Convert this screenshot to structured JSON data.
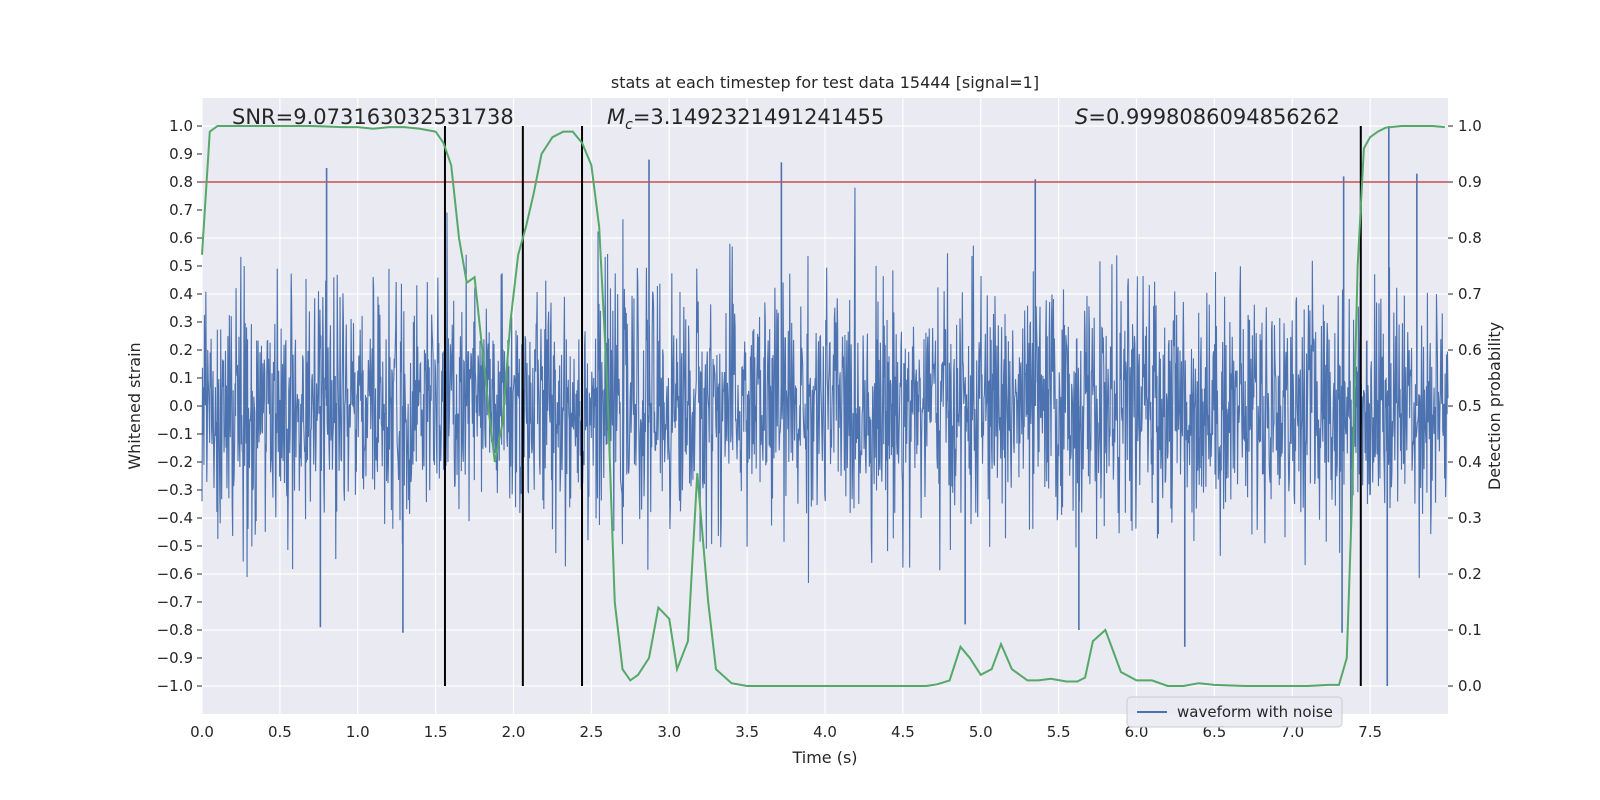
{
  "chart_data": {
    "type": "line",
    "title": "stats at each timestep for test data 15444 [signal=1]",
    "xlabel": "Time (s)",
    "ylabel": "Whitened strain",
    "y2label": "Detection probability",
    "xlim": [
      0.0,
      8.0
    ],
    "ylim": [
      -1.1,
      1.1
    ],
    "y2lim": [
      -0.05,
      1.05
    ],
    "xticks": [
      0.0,
      0.5,
      1.0,
      1.5,
      2.0,
      2.5,
      3.0,
      3.5,
      4.0,
      4.5,
      5.0,
      5.5,
      6.0,
      6.5,
      7.0,
      7.5
    ],
    "xtick_labels": [
      "0.0",
      "0.5",
      "1.0",
      "1.5",
      "2.0",
      "2.5",
      "3.0",
      "3.5",
      "4.0",
      "4.5",
      "5.0",
      "5.5",
      "6.0",
      "6.5",
      "7.0",
      "7.5"
    ],
    "yticks": [
      1.0,
      0.9,
      0.8,
      0.7,
      0.6,
      0.5,
      0.4,
      0.3,
      0.2,
      0.1,
      0.0,
      -0.1,
      -0.2,
      -0.3,
      -0.4,
      -0.5,
      -0.6,
      -0.7,
      -0.8,
      -0.9,
      -1.0
    ],
    "ytick_labels": [
      "1.0",
      "0.9",
      "0.8",
      "0.7",
      "0.6",
      "0.5",
      "0.4",
      "0.3",
      "0.2",
      "0.1",
      "0.0",
      "−0.1",
      "−0.2",
      "−0.3",
      "−0.4",
      "−0.5",
      "−0.6",
      "−0.7",
      "−0.8",
      "−0.9",
      "−1.0"
    ],
    "y2ticks": [
      1.0,
      0.9,
      0.8,
      0.7,
      0.6,
      0.5,
      0.4,
      0.3,
      0.2,
      0.1,
      0.0
    ],
    "y2tick_labels": [
      "1.0",
      "0.9",
      "0.8",
      "0.7",
      "0.6",
      "0.5",
      "0.4",
      "0.3",
      "0.2",
      "0.1",
      "0.0"
    ],
    "annotations": {
      "snr": "SNR=9.073163032531738",
      "mc_symbol": "M",
      "mc_sub": "c",
      "mc_value": "=3.1492321491241455",
      "s_symbol": "S",
      "s_value": "=0.9998086094856262"
    },
    "threshold": {
      "axis": "y2",
      "value": 0.9
    },
    "vertical_lines_x": [
      1.56,
      2.06,
      2.44,
      7.44
    ],
    "waveform": {
      "name": "waveform with noise",
      "x_range": [
        0.0,
        8.0
      ],
      "envelope_p95": 0.41,
      "peaks": [
        {
          "x": 0.8,
          "y": 0.85
        },
        {
          "x": 2.87,
          "y": 0.88
        },
        {
          "x": 3.72,
          "y": 0.87
        },
        {
          "x": 5.35,
          "y": 0.81
        },
        {
          "x": 7.62,
          "y": 1.0
        },
        {
          "x": 7.33,
          "y": 0.82
        },
        {
          "x": 7.8,
          "y": 0.83
        },
        {
          "x": 0.76,
          "y": -0.79
        },
        {
          "x": 1.29,
          "y": -0.81
        },
        {
          "x": 7.61,
          "y": -1.0
        },
        {
          "x": 6.31,
          "y": -0.86
        },
        {
          "x": 7.32,
          "y": -0.81
        },
        {
          "x": 4.9,
          "y": -0.78
        },
        {
          "x": 5.63,
          "y": -0.8
        }
      ]
    },
    "probability": {
      "name": "detection probability",
      "x": [
        0.0,
        0.05,
        0.1,
        0.15,
        0.2,
        0.3,
        0.4,
        0.5,
        0.6,
        0.7,
        0.8,
        0.9,
        1.0,
        1.1,
        1.2,
        1.3,
        1.4,
        1.5,
        1.55,
        1.6,
        1.65,
        1.7,
        1.75,
        1.8,
        1.85,
        1.88,
        1.93,
        1.98,
        2.03,
        2.08,
        2.13,
        2.18,
        2.25,
        2.32,
        2.38,
        2.44,
        2.5,
        2.55,
        2.6,
        2.65,
        2.7,
        2.75,
        2.8,
        2.87,
        2.93,
        3.0,
        3.05,
        3.12,
        3.18,
        3.25,
        3.3,
        3.4,
        3.5,
        3.7,
        4.0,
        4.3,
        4.5,
        4.65,
        4.72,
        4.8,
        4.87,
        4.93,
        5.0,
        5.07,
        5.13,
        5.2,
        5.3,
        5.37,
        5.45,
        5.55,
        5.62,
        5.67,
        5.72,
        5.8,
        5.9,
        6.0,
        6.1,
        6.2,
        6.3,
        6.4,
        6.5,
        6.7,
        6.9,
        7.1,
        7.23,
        7.3,
        7.35,
        7.38,
        7.42,
        7.46,
        7.5,
        7.55,
        7.6,
        7.7,
        7.9,
        7.98
      ],
      "y": [
        0.77,
        0.99,
        1.0,
        1.0,
        1.0,
        1.0,
        1.0,
        1.0,
        1.0,
        1.0,
        0.999,
        0.998,
        0.998,
        0.995,
        0.998,
        0.998,
        0.995,
        0.99,
        0.97,
        0.93,
        0.8,
        0.72,
        0.73,
        0.6,
        0.47,
        0.4,
        0.47,
        0.65,
        0.77,
        0.82,
        0.88,
        0.95,
        0.98,
        0.99,
        0.99,
        0.97,
        0.93,
        0.82,
        0.55,
        0.15,
        0.03,
        0.01,
        0.02,
        0.05,
        0.14,
        0.12,
        0.03,
        0.08,
        0.38,
        0.15,
        0.03,
        0.005,
        0.0,
        0.0,
        0.0,
        0.0,
        0.0,
        0.0,
        0.003,
        0.01,
        0.07,
        0.05,
        0.02,
        0.03,
        0.075,
        0.03,
        0.01,
        0.01,
        0.013,
        0.008,
        0.008,
        0.015,
        0.08,
        0.1,
        0.025,
        0.01,
        0.01,
        0.0,
        0.0,
        0.005,
        0.002,
        0.0,
        0.0,
        0.0,
        0.002,
        0.002,
        0.05,
        0.3,
        0.75,
        0.96,
        0.98,
        0.99,
        0.997,
        1.0,
        1.0,
        0.998
      ]
    },
    "legend": {
      "placement": "bottom-right",
      "entries": [
        "waveform with noise"
      ]
    },
    "grid": true
  },
  "colors": {
    "waveform": "#4c72b0",
    "probability": "#55a868",
    "threshold": "#c44e52",
    "vlines": "#000000",
    "plot_bg": "#eaeaf2",
    "grid": "#ffffff"
  }
}
